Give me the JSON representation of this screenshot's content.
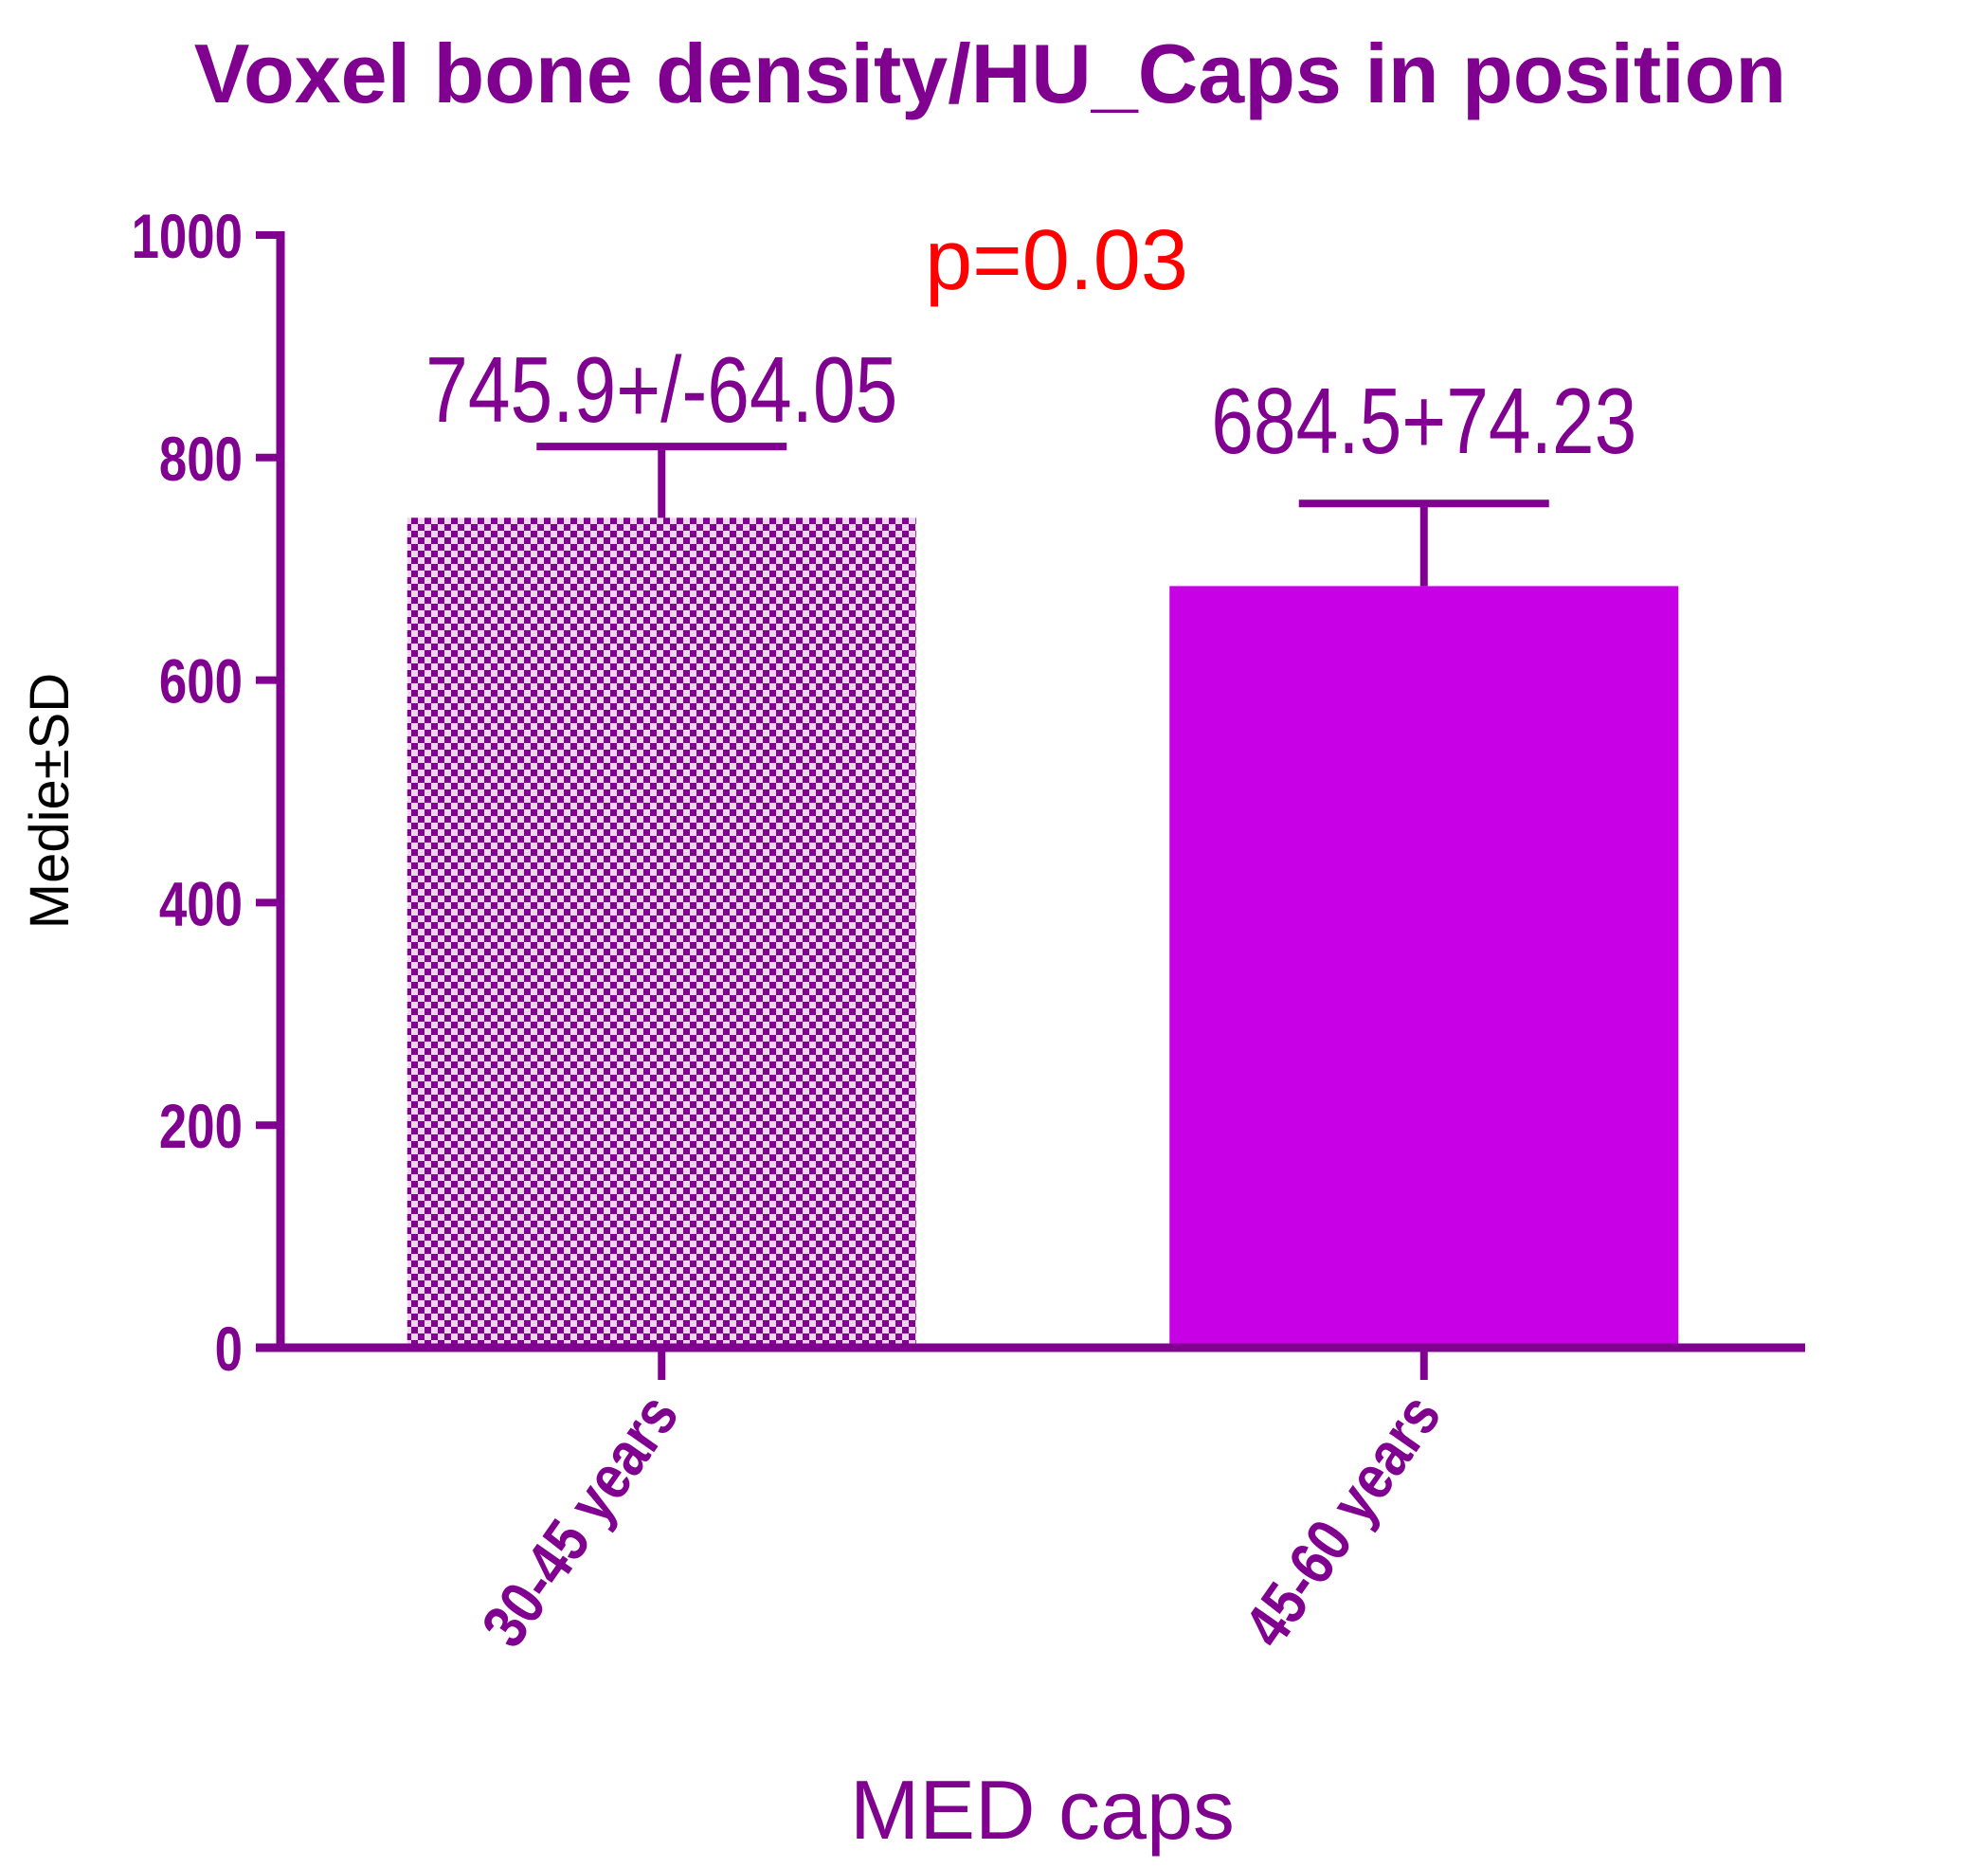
{
  "chart_data": {
    "type": "bar",
    "title": "Voxel bone density/HU_Caps in position",
    "xlabel": "MED caps",
    "ylabel": "Medie±SD",
    "categories": [
      "30-45 years",
      "45-60 years"
    ],
    "values": [
      745.9,
      684.5
    ],
    "error": [
      64.05,
      74.23
    ],
    "data_labels": [
      "745.9+/-64.05",
      "684.5+74.23"
    ],
    "ylim": [
      0,
      1000
    ],
    "yticks": [
      "0",
      "200",
      "400",
      "600",
      "800",
      "1000"
    ],
    "annotation": "p=0.03",
    "grid": false,
    "legend": "none",
    "bar_styles": [
      "checkered",
      "solid"
    ]
  },
  "colors": {
    "axis": "#800090",
    "text": "#800090",
    "bar_solid": "#c800e6",
    "checker_dark": "#800090",
    "checker_light": "#f0d4f0",
    "annotation": "#ff0000",
    "ylabel": "#000000"
  }
}
